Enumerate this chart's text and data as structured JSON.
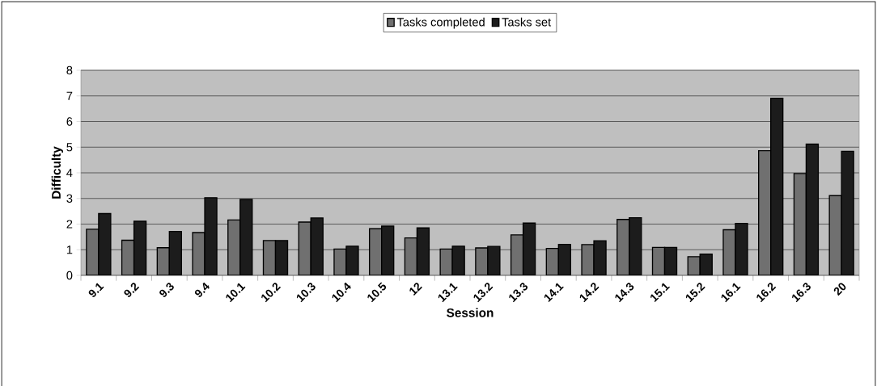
{
  "chart_data": {
    "type": "bar",
    "xlabel": "Session",
    "ylabel": "Difficulty",
    "categories": [
      "9.1",
      "9.2",
      "9.3",
      "9.4",
      "10.1",
      "10.2",
      "10.3",
      "10.4",
      "10.5",
      "12",
      "13.1",
      "13.2",
      "13.3",
      "14.1",
      "14.2",
      "14.3",
      "15.1",
      "15.2",
      "16.1",
      "16.2",
      "16.3",
      "20"
    ],
    "series": [
      {
        "name": "Tasks completed",
        "color": "#707070",
        "values": [
          1.8,
          1.37,
          1.08,
          1.67,
          2.16,
          1.36,
          2.08,
          1.03,
          1.82,
          1.46,
          1.03,
          1.07,
          1.58,
          1.05,
          1.2,
          2.18,
          1.09,
          0.73,
          1.78,
          4.86,
          3.97,
          3.11
        ]
      },
      {
        "name": "Tasks set",
        "color": "#1c1c1c",
        "values": [
          2.41,
          2.11,
          1.71,
          3.03,
          2.96,
          1.36,
          2.24,
          1.14,
          1.92,
          1.85,
          1.14,
          1.13,
          2.04,
          1.21,
          1.35,
          2.25,
          1.09,
          0.83,
          2.03,
          6.91,
          5.12,
          4.84
        ]
      }
    ],
    "ylim": [
      0,
      8
    ],
    "yticks": [
      0,
      1,
      2,
      3,
      4,
      5,
      6,
      7,
      8
    ],
    "grid": "y",
    "legend": "top"
  }
}
